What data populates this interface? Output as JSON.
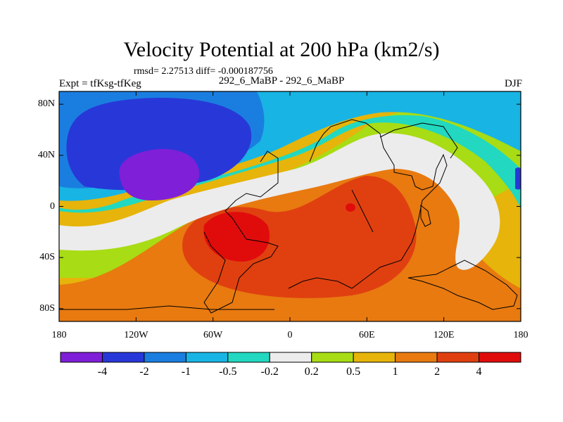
{
  "chart_data": {
    "type": "heatmap",
    "title": "Velocity Potential at 200 hPa (km2/s)",
    "stats_text": "rmsd= 2.27513 diff= -0.000187756",
    "left_label": "Expt = tfKsg-tfKeg",
    "center_label": "292_6_MaBP - 292_6_MaBP",
    "right_label": "DJF",
    "x_ticks": [
      "180",
      "120W",
      "60W",
      "0",
      "60E",
      "120E",
      "180"
    ],
    "x_tick_values": [
      -180,
      -120,
      -60,
      0,
      60,
      120,
      180
    ],
    "y_ticks": [
      "80N",
      "40N",
      "0",
      "40S",
      "80S"
    ],
    "y_tick_values": [
      80,
      40,
      0,
      -40,
      -80
    ],
    "xlim": [
      -180,
      180
    ],
    "ylim": [
      -90,
      90
    ],
    "colorbar": {
      "levels": [
        "-4",
        "-2",
        "-1",
        "-0.5",
        "-0.2",
        "0.2",
        "0.5",
        "1",
        "2",
        "4"
      ],
      "colors": [
        "#7f1fd8",
        "#2838d8",
        "#1a7ee0",
        "#18b4e4",
        "#22d8c0",
        "#ececec",
        "#a8dc14",
        "#e6b40a",
        "#e87a10",
        "#e04010",
        "#e00c0c"
      ]
    },
    "regions": [
      {
        "name": "negative-north-pacific",
        "center": [
          -95,
          35
        ],
        "level": "-4 to -2"
      },
      {
        "name": "negative-core",
        "center": [
          -90,
          20
        ],
        "level": "below -4"
      },
      {
        "name": "positive-south-atlantic",
        "center": [
          -40,
          -20
        ],
        "level": "above 4"
      },
      {
        "name": "positive-africa",
        "center": [
          20,
          -20
        ],
        "level": "2 to 4"
      },
      {
        "name": "positive-spot-east-africa",
        "center": [
          50,
          0
        ],
        "level": "above 4"
      }
    ]
  }
}
